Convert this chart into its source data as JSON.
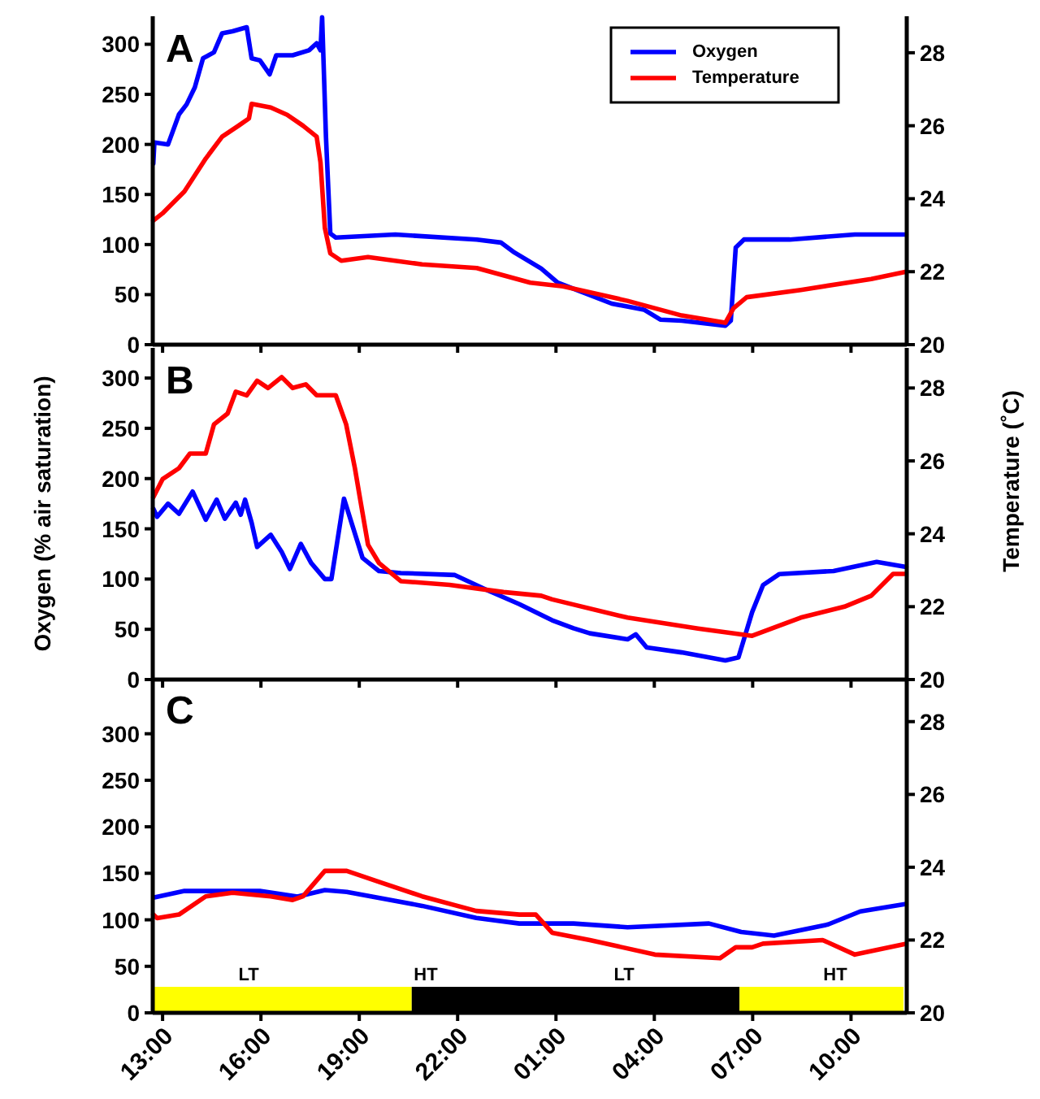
{
  "chart_data": [
    {
      "type": "line",
      "title": "A",
      "legend": "top right",
      "tick_labels": "y",
      "xlim": [
        "2000-01-01T12:42",
        "2000-01-02T11:42"
      ],
      "ylim": [
        0,
        328
      ],
      "y2lim": [
        20,
        29
      ],
      "xticks": [
        {
          "value": "2000-01-01T13:00",
          "label": null
        },
        {
          "value": "2000-01-01T16:00",
          "label": null
        },
        {
          "value": "2000-01-01T19:00",
          "label": null
        },
        {
          "value": "2000-01-01T22:00",
          "label": null
        },
        {
          "value": "2000-01-02T01:00",
          "label": null
        },
        {
          "value": "2000-01-02T04:00",
          "label": null
        },
        {
          "value": "2000-01-02T07:00",
          "label": null
        },
        {
          "value": "2000-01-02T10:00",
          "label": null
        }
      ],
      "yticks": [
        0,
        50,
        100,
        150,
        200,
        250,
        300
      ],
      "y2ticks": [
        20,
        22,
        24,
        26,
        28
      ],
      "series": [
        {
          "name": "Oxygen",
          "color": "#0000ff",
          "x": [
            "2000-01-01T12:43",
            "2000-01-01T12:45",
            "2000-01-01T13:10",
            "2000-01-01T13:30",
            "2000-01-01T13:44",
            "2000-01-01T13:59",
            "2000-01-01T14:14",
            "2000-01-01T14:34",
            "2000-01-01T14:49",
            "2000-01-01T15:08",
            "2000-01-01T15:34",
            "2000-01-01T15:43",
            "2000-01-01T15:58",
            "2000-01-01T16:16",
            "2000-01-01T16:28",
            "2000-01-01T16:58",
            "2000-01-01T17:28",
            "2000-01-01T17:42",
            "2000-01-01T17:49",
            "2000-01-01T17:52",
            "2000-01-01T17:59",
            "2000-01-01T18:07",
            "2000-01-01T18:17",
            "2000-01-01T20:06",
            "2000-01-01T22:35",
            "2000-01-01T23:19",
            "2000-01-01T23:44",
            "2000-01-02T00:33",
            "2000-01-02T01:03",
            "2000-01-02T02:42",
            "2000-01-02T03:41",
            "2000-01-02T04:11",
            "2000-01-02T04:50",
            "2000-01-02T06:10",
            "2000-01-02T06:20",
            "2000-01-02T06:29",
            "2000-01-02T06:44",
            "2000-01-02T08:08",
            "2000-01-02T10:07",
            "2000-01-02T11:41"
          ],
          "values": [
            181,
            202,
            200,
            230,
            240,
            257,
            286,
            292,
            311,
            313,
            317,
            286,
            284,
            270,
            289,
            289,
            294,
            301,
            294,
            327,
            208,
            111,
            107,
            110,
            105,
            102,
            92,
            76,
            62,
            41,
            35,
            25,
            24,
            19,
            24,
            97,
            105,
            105,
            110,
            110
          ]
        },
        {
          "name": "Temperature",
          "color": "#ff0000",
          "axis": "y2",
          "x": [
            "2000-01-01T12:43",
            "2000-01-01T13:00",
            "2000-01-01T13:40",
            "2000-01-01T14:19",
            "2000-01-01T14:49",
            "2000-01-01T15:19",
            "2000-01-01T15:38",
            "2000-01-01T15:43",
            "2000-01-01T16:18",
            "2000-01-01T16:48",
            "2000-01-01T17:17",
            "2000-01-01T17:42",
            "2000-01-01T17:49",
            "2000-01-01T17:57",
            "2000-01-01T18:07",
            "2000-01-01T18:27",
            "2000-01-01T19:16",
            "2000-01-01T20:55",
            "2000-01-01T22:35",
            "2000-01-01T23:24",
            "2000-01-02T00:13",
            "2000-01-02T01:13",
            "2000-01-02T03:11",
            "2000-01-02T04:50",
            "2000-01-02T06:10",
            "2000-01-02T06:25",
            "2000-01-02T06:49",
            "2000-01-02T08:28",
            "2000-01-02T10:37",
            "2000-01-02T11:41"
          ],
          "values": [
            23.4,
            23.6,
            24.2,
            25.1,
            25.7,
            26.0,
            26.2,
            26.6,
            26.5,
            26.3,
            26.0,
            25.7,
            25.0,
            23.2,
            22.5,
            22.3,
            22.4,
            22.2,
            22.1,
            21.9,
            21.7,
            21.6,
            21.2,
            20.8,
            20.6,
            21.0,
            21.3,
            21.5,
            21.8,
            22.0
          ]
        }
      ]
    },
    {
      "type": "line",
      "title": "B",
      "tick_labels": "y",
      "ylabel": "Oxygen (% air saturation)",
      "y2label": "Temperature (˚C)",
      "xlim": [
        "2000-01-01T12:42",
        "2000-01-02T11:42"
      ],
      "ylim": [
        0,
        330
      ],
      "y2lim": [
        20,
        29.1
      ],
      "xticks": [
        {
          "value": "2000-01-01T13:00",
          "label": null
        },
        {
          "value": "2000-01-01T16:00",
          "label": null
        },
        {
          "value": "2000-01-01T19:00",
          "label": null
        },
        {
          "value": "2000-01-01T22:00",
          "label": null
        },
        {
          "value": "2000-01-02T01:00",
          "label": null
        },
        {
          "value": "2000-01-02T04:00",
          "label": null
        },
        {
          "value": "2000-01-02T07:00",
          "label": null
        },
        {
          "value": "2000-01-02T10:00",
          "label": null
        }
      ],
      "yticks": [
        0,
        50,
        100,
        150,
        200,
        250,
        300
      ],
      "y2ticks": [
        20,
        22,
        24,
        26,
        28
      ],
      "series": [
        {
          "color": "#0000ff",
          "x": [
            "2000-01-01T12:43",
            "2000-01-01T12:50",
            "2000-01-01T13:10",
            "2000-01-01T13:30",
            "2000-01-01T13:55",
            "2000-01-01T14:19",
            "2000-01-01T14:39",
            "2000-01-01T14:54",
            "2000-01-01T15:14",
            "2000-01-01T15:23",
            "2000-01-01T15:31",
            "2000-01-01T15:43",
            "2000-01-01T15:53",
            "2000-01-01T16:18",
            "2000-01-01T16:38",
            "2000-01-01T16:53",
            "2000-01-01T17:13",
            "2000-01-01T17:32",
            "2000-01-01T17:57",
            "2000-01-01T18:09",
            "2000-01-01T18:32",
            "2000-01-01T18:47",
            "2000-01-01T19:06",
            "2000-01-01T19:36",
            "2000-01-01T20:16",
            "2000-01-01T21:55",
            "2000-01-01T22:54",
            "2000-01-01T23:53",
            "2000-01-02T00:53",
            "2000-01-02T01:32",
            "2000-01-02T02:02",
            "2000-01-02T03:11",
            "2000-01-02T03:26",
            "2000-01-02T03:46",
            "2000-01-02T04:50",
            "2000-01-02T06:10",
            "2000-01-02T06:34",
            "2000-01-02T06:59",
            "2000-01-02T07:19",
            "2000-01-02T07:49",
            "2000-01-02T09:28",
            "2000-01-02T10:47",
            "2000-01-02T11:41"
          ],
          "values": [
            170,
            162,
            175,
            165,
            187,
            159,
            179,
            160,
            176,
            164,
            179,
            156,
            132,
            144,
            127,
            110,
            135,
            116,
            100,
            100,
            180,
            154,
            121,
            108,
            106,
            104,
            89,
            75,
            59,
            51,
            46,
            40,
            45,
            32,
            27,
            19,
            22,
            67,
            94,
            105,
            108,
            117,
            112
          ]
        },
        {
          "color": "#ff0000",
          "axis": "y2",
          "x": [
            "2000-01-01T12:43",
            "2000-01-01T13:00",
            "2000-01-01T13:30",
            "2000-01-01T13:50",
            "2000-01-01T14:19",
            "2000-01-01T14:34",
            "2000-01-01T14:59",
            "2000-01-01T15:14",
            "2000-01-01T15:34",
            "2000-01-01T15:53",
            "2000-01-01T16:13",
            "2000-01-01T16:38",
            "2000-01-01T16:58",
            "2000-01-01T17:22",
            "2000-01-01T17:42",
            "2000-01-01T18:17",
            "2000-01-01T18:36",
            "2000-01-01T18:52",
            "2000-01-01T19:01",
            "2000-01-01T19:16",
            "2000-01-01T19:36",
            "2000-01-01T20:16",
            "2000-01-01T21:45",
            "2000-01-01T23:24",
            "2000-01-02T00:33",
            "2000-01-02T00:53",
            "2000-01-02T03:11",
            "2000-01-02T05:20",
            "2000-01-02T06:59",
            "2000-01-02T08:28",
            "2000-01-02T09:48",
            "2000-01-02T10:37",
            "2000-01-02T11:17",
            "2000-01-02T11:41"
          ],
          "values": [
            25.0,
            25.5,
            25.8,
            26.2,
            26.2,
            27.0,
            27.3,
            27.9,
            27.8,
            28.2,
            28.0,
            28.3,
            28.0,
            28.1,
            27.8,
            27.8,
            27.0,
            25.8,
            25.0,
            23.7,
            23.2,
            22.7,
            22.6,
            22.4,
            22.3,
            22.2,
            21.7,
            21.4,
            21.2,
            21.7,
            22.0,
            22.3,
            22.9,
            22.9
          ]
        }
      ]
    },
    {
      "type": "line",
      "title": "C",
      "xlim": [
        "2000-01-01T12:42",
        "2000-01-02T11:42"
      ],
      "ylim": [
        0,
        360
      ],
      "y2lim": [
        20,
        29.2
      ],
      "xticks": [
        {
          "value": "2000-01-01T13:00",
          "label": "13:00"
        },
        {
          "value": "2000-01-01T16:00",
          "label": "16:00"
        },
        {
          "value": "2000-01-01T19:00",
          "label": "19:00"
        },
        {
          "value": "2000-01-01T22:00",
          "label": "22:00"
        },
        {
          "value": "2000-01-02T01:00",
          "label": "01:00"
        },
        {
          "value": "2000-01-02T04:00",
          "label": "04:00"
        },
        {
          "value": "2000-01-02T07:00",
          "label": "07:00"
        },
        {
          "value": "2000-01-02T10:00",
          "label": "10:00"
        }
      ],
      "yticks": [
        0,
        50,
        100,
        150,
        200,
        250,
        300
      ],
      "y2ticks": [
        20,
        22,
        24,
        26,
        28
      ],
      "bands": [
        {
          "axis": "x",
          "from": "2000-01-01T12:42",
          "to": "2000-01-01T20:36",
          "color": "#ffff00"
        },
        {
          "axis": "x",
          "from": "2000-01-01T20:36",
          "to": "2000-01-02T06:36",
          "color": "#000000"
        },
        {
          "axis": "x",
          "from": "2000-01-02T06:36",
          "to": "2000-01-02T11:36",
          "color": "#ffff00"
        }
      ],
      "annotations": [
        "LT",
        "HT",
        "LT",
        "HT"
      ],
      "series": [
        {
          "color": "#0000ff",
          "x": [
            "2000-01-01T12:45",
            "2000-01-01T13:40",
            "2000-01-01T15:58",
            "2000-01-01T17:07",
            "2000-01-01T17:57",
            "2000-01-01T18:37",
            "2000-01-01T20:55",
            "2000-01-01T22:34",
            "2000-01-01T23:53",
            "2000-01-02T01:32",
            "2000-01-02T03:11",
            "2000-01-02T05:40",
            "2000-01-02T06:39",
            "2000-01-02T07:39",
            "2000-01-02T09:18",
            "2000-01-02T10:17",
            "2000-01-02T11:41"
          ],
          "values": [
            124,
            131,
            131,
            125,
            132,
            130,
            115,
            102,
            96,
            96,
            92,
            96,
            87,
            83,
            95,
            109,
            117
          ]
        },
        {
          "color": "#ff0000",
          "axis": "y2",
          "x": [
            "2000-01-01T12:43",
            "2000-01-01T12:50",
            "2000-01-01T13:30",
            "2000-01-01T14:19",
            "2000-01-01T15:08",
            "2000-01-01T16:18",
            "2000-01-01T16:58",
            "2000-01-01T17:17",
            "2000-01-01T17:57",
            "2000-01-01T18:37",
            "2000-01-01T19:36",
            "2000-01-01T20:55",
            "2000-01-01T22:34",
            "2000-01-01T23:53",
            "2000-01-02T00:23",
            "2000-01-02T00:53",
            "2000-01-02T02:02",
            "2000-01-02T04:01",
            "2000-01-02T06:00",
            "2000-01-02T06:29",
            "2000-01-02T06:59",
            "2000-01-02T07:19",
            "2000-01-02T09:08",
            "2000-01-02T10:07",
            "2000-01-02T11:41"
          ],
          "values": [
            22.7,
            22.6,
            22.7,
            23.2,
            23.3,
            23.2,
            23.1,
            23.2,
            23.9,
            23.9,
            23.6,
            23.2,
            22.8,
            22.7,
            22.7,
            22.2,
            22.0,
            21.6,
            21.5,
            21.8,
            21.8,
            21.9,
            22.0,
            21.6,
            21.9
          ]
        }
      ]
    }
  ]
}
